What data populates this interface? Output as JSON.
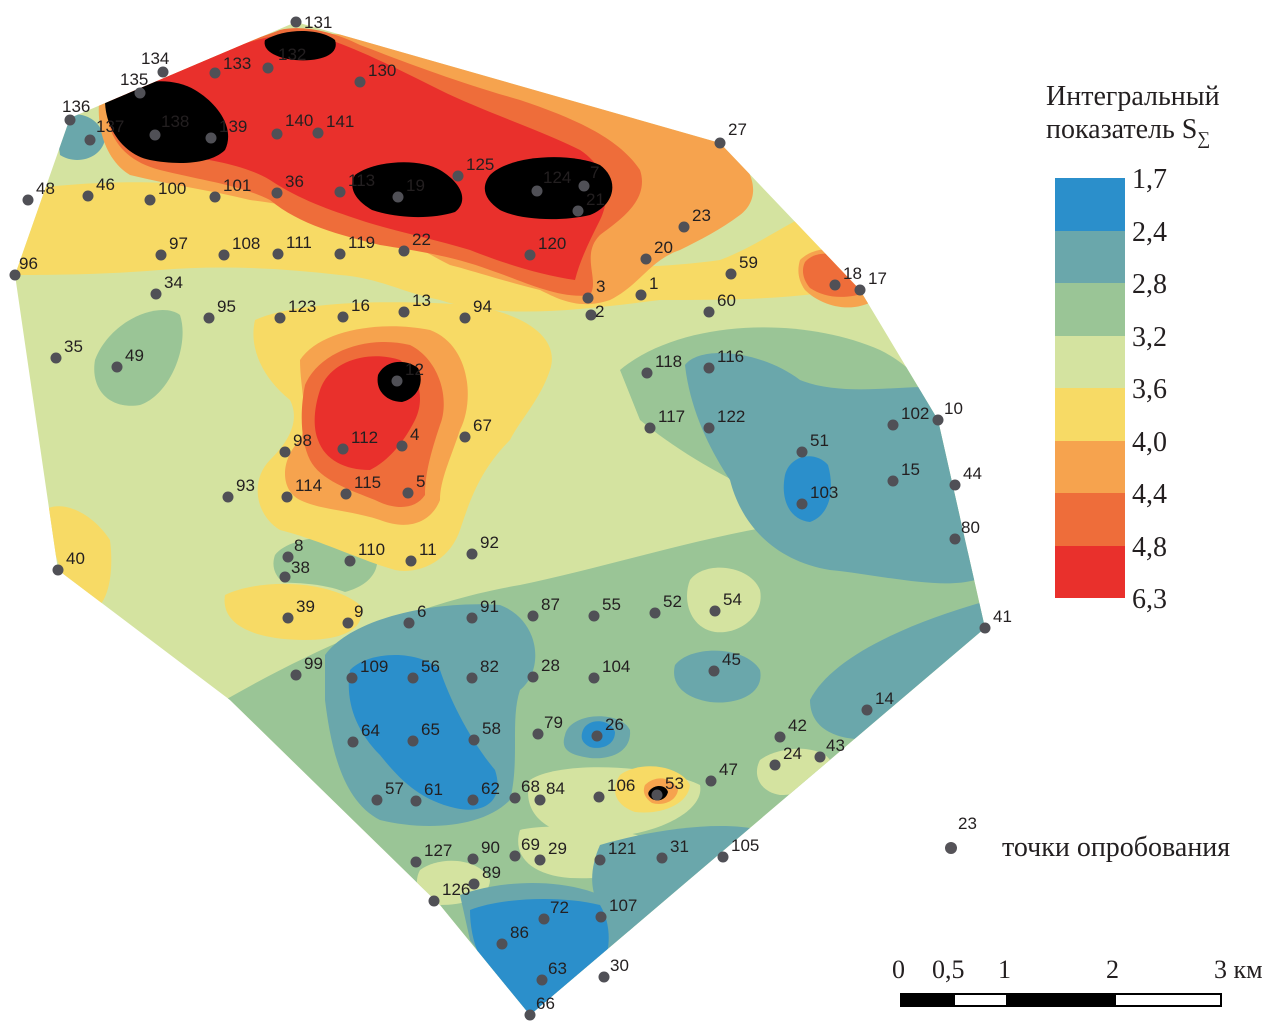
{
  "legend": {
    "title_line1": "Интегральный",
    "title_line2": "показатель S",
    "title_sub": "∑",
    "classes": [
      {
        "label": "1,7",
        "color": "#2b8fcb"
      },
      {
        "label": "2,4",
        "color": "#6aa7ab"
      },
      {
        "label": "2,8",
        "color": "#9ac596"
      },
      {
        "label": "3,2",
        "color": "#d4e3a0"
      },
      {
        "label": "3,6",
        "color": "#f7da65"
      },
      {
        "label": "4,0",
        "color": "#f6a34e"
      },
      {
        "label": "4,4",
        "color": "#ee6d3a"
      },
      {
        "label": "4,8",
        "color": "#e9302c"
      },
      {
        "label": "6,3",
        "color": ""
      }
    ]
  },
  "sample_legend": {
    "example_number": "23",
    "label": "точки опробования",
    "icon": "sample-point-dot"
  },
  "scale": {
    "ticks": [
      "0",
      "0,5",
      "1",
      "2",
      "3 км"
    ]
  },
  "map": {
    "background_class": "3,2",
    "points": [
      "131",
      "132",
      "133",
      "134",
      "135",
      "136",
      "137",
      "138",
      "139",
      "140",
      "141",
      "130",
      "27",
      "7",
      "124",
      "125",
      "19",
      "113",
      "36",
      "101",
      "100",
      "46",
      "48",
      "21",
      "23",
      "20",
      "120",
      "22",
      "119",
      "111",
      "108",
      "97",
      "96",
      "34",
      "95",
      "123",
      "16",
      "13",
      "94",
      "3",
      "2",
      "1",
      "59",
      "60",
      "18",
      "17",
      "35",
      "49",
      "118",
      "116",
      "12",
      "117",
      "122",
      "102",
      "10",
      "67",
      "112",
      "4",
      "98",
      "51",
      "15",
      "44",
      "93",
      "114",
      "115",
      "5",
      "103",
      "80",
      "8",
      "38",
      "110",
      "11",
      "92",
      "40",
      "39",
      "9",
      "6",
      "91",
      "87",
      "55",
      "52",
      "54",
      "41",
      "99",
      "109",
      "56",
      "82",
      "28",
      "104",
      "45",
      "14",
      "64",
      "65",
      "58",
      "79",
      "26",
      "42",
      "43",
      "24",
      "47",
      "57",
      "61",
      "62",
      "68",
      "84",
      "106",
      "53",
      "127",
      "90",
      "69",
      "29",
      "121",
      "31",
      "105",
      "126",
      "89",
      "72",
      "107",
      "86",
      "63",
      "30",
      "66"
    ]
  }
}
